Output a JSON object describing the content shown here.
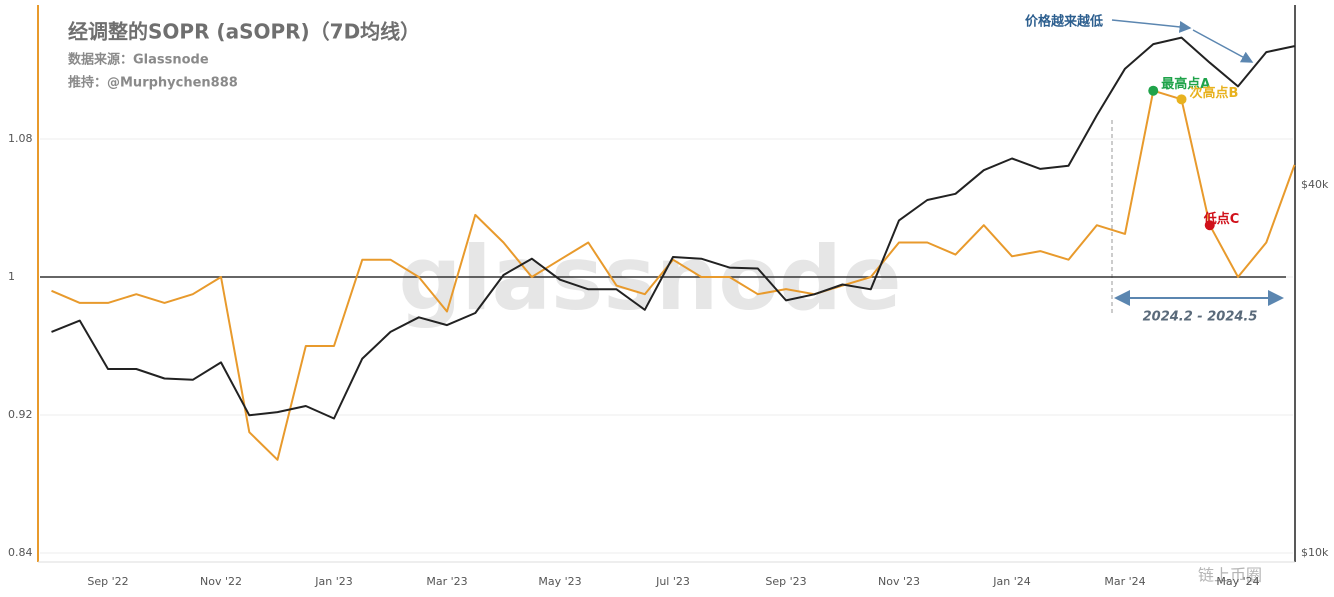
{
  "chart_data": {
    "type": "line",
    "title": "经调整的SOPR (aSOPR)（7D均线）",
    "source": "数据来源：Glassnode",
    "credit": "推持：@Murphychen888",
    "watermark": "glassnode",
    "corner_mark": "链上币圈",
    "categories": [
      null,
      null,
      "Sep '22",
      null,
      null,
      null,
      "Nov '22",
      null,
      null,
      null,
      "Jan '23",
      null,
      null,
      null,
      "Mar '23",
      null,
      null,
      null,
      "May '23",
      null,
      null,
      null,
      "Jul '23",
      null,
      null,
      null,
      "Sep '23",
      null,
      null,
      null,
      "Nov '23",
      null,
      null,
      null,
      "Jan '24",
      null,
      null,
      null,
      "Mar '24",
      null,
      null,
      null,
      "May '24",
      null,
      null
    ],
    "series": [
      {
        "name": "aSOPR",
        "color": "#e89a2c",
        "axis": "y",
        "values": [
          0.992,
          0.985,
          0.985,
          0.99,
          0.985,
          0.99,
          1.0,
          0.91,
          0.894,
          0.96,
          0.96,
          1.01,
          1.01,
          1.0,
          0.98,
          1.036,
          1.02,
          1.0,
          1.01,
          1.02,
          0.995,
          0.99,
          1.01,
          1.0,
          1.0,
          0.99,
          0.993,
          0.99,
          0.995,
          1.0,
          1.02,
          1.02,
          1.013,
          1.03,
          1.012,
          1.015,
          1.01,
          1.03,
          1.025,
          1.108,
          1.103,
          1.03,
          1.0,
          1.02,
          1.065
        ]
      },
      {
        "name": "Price",
        "color": "#222222",
        "axis": "y2",
        "values": [
          23000,
          24000,
          20000,
          20000,
          19300,
          19200,
          20500,
          16800,
          17000,
          17400,
          16600,
          20800,
          23000,
          24300,
          23600,
          24700,
          28500,
          30300,
          28000,
          27000,
          27000,
          25000,
          30500,
          30300,
          29300,
          29200,
          25900,
          26500,
          27500,
          27000,
          35000,
          37800,
          38700,
          42300,
          44200,
          42500,
          43000,
          52000,
          62000,
          68000,
          69700,
          63400,
          58000,
          66000,
          67500
        ]
      }
    ],
    "ylim": [
      0.84,
      1.16
    ],
    "yticks": [
      0.84,
      0.92,
      1,
      1.08
    ],
    "y2lim": [
      10000,
      80000
    ],
    "y2scale": "log",
    "y2ticks": [
      {
        "value": 10000,
        "label": "$10k"
      },
      {
        "value": 40000,
        "label": "$40k"
      }
    ],
    "reference_line": 1,
    "grid": true,
    "annotations": {
      "price_trend": "价格越来越低",
      "peak_a": "最高点A",
      "peak_b": "次高点B",
      "low_c": "低点C",
      "range": "2024.2 - 2024.5"
    }
  }
}
